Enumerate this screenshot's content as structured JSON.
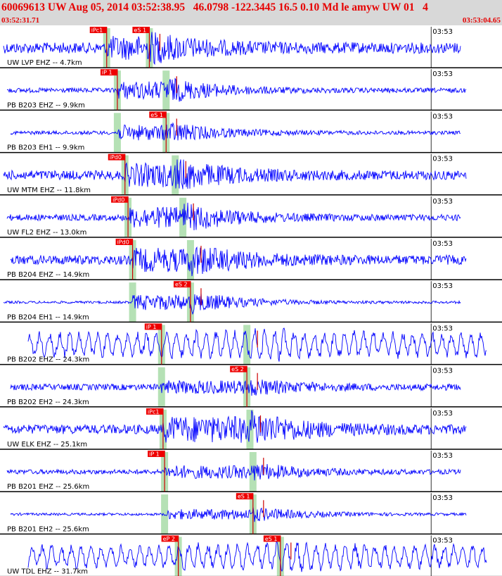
{
  "header": {
    "title": "60069613 UW Aug 05, 2014 03:52:38.95   46.0798 -122.3445 16.5 0.10 Md le amyw UW 01   4",
    "time_start": "03:52:31.71",
    "time_end": "03:53:04.65"
  },
  "colors": {
    "trace": "#0000ff",
    "pick_bg": "#ee0000",
    "pick_line": "#cc0000",
    "theory_band": "#a8dca8",
    "separator": "#000000",
    "header_bg": "#d8d8d8",
    "title_text": "#e60000"
  },
  "chart_data": {
    "type": "line",
    "x_range_seconds": [
      0,
      32.94
    ],
    "minute_tick_label": "03:53",
    "minute_tick_time_s": 28.29,
    "traces": [
      {
        "label": "UW LVP EHZ -- 4.7km",
        "p_pick": "iPc1",
        "s_pick": "eS 1",
        "p_time": 7.0,
        "s_time": 9.8,
        "amp_pre": 0.35,
        "amp_post": 0.9,
        "lowfreq": false
      },
      {
        "label": "PB B203 EHZ -- 9.9km",
        "p_pick": "iP 1",
        "s_pick": "",
        "p_time": 7.7,
        "s_time": 10.9,
        "amp_pre": 0.15,
        "amp_post": 0.7,
        "lowfreq": false
      },
      {
        "label": "PB B203 EH1 -- 9.9km",
        "p_pick": "",
        "s_pick": "eS 1",
        "p_time": 7.7,
        "s_time": 10.9,
        "amp_pre": 0.12,
        "amp_post": 0.6,
        "lowfreq": false
      },
      {
        "label": "UW MTM EHZ -- 11.8km",
        "p_pick": "iPd0",
        "s_pick": "",
        "p_time": 8.2,
        "s_time": 11.5,
        "amp_pre": 0.3,
        "amp_post": 0.9,
        "lowfreq": false
      },
      {
        "label": "UW FL2 EHZ -- 13.0km",
        "p_pick": "iPd0",
        "s_pick": "",
        "p_time": 8.4,
        "s_time": 12.0,
        "amp_pre": 0.2,
        "amp_post": 0.8,
        "lowfreq": false
      },
      {
        "label": "PB B204 EHZ -- 14.9km",
        "p_pick": "iPd0",
        "s_pick": "",
        "p_time": 8.7,
        "s_time": 12.5,
        "amp_pre": 0.3,
        "amp_post": 0.9,
        "lowfreq": false
      },
      {
        "label": "PB B204 EH1 -- 14.9km",
        "p_pick": "",
        "s_pick": "eS 2",
        "p_time": 8.7,
        "s_time": 12.5,
        "amp_pre": 0.08,
        "amp_post": 0.6,
        "lowfreq": false
      },
      {
        "label": "PB B202 EHZ -- 24.3km",
        "p_pick": "iP 1",
        "s_pick": "",
        "p_time": 10.6,
        "s_time": 16.2,
        "amp_pre": 0.9,
        "amp_post": 1.0,
        "lowfreq": true
      },
      {
        "label": "PB B202 EH2 -- 24.3km",
        "p_pick": "",
        "s_pick": "eS 2",
        "p_time": 10.6,
        "s_time": 16.2,
        "amp_pre": 0.2,
        "amp_post": 0.5,
        "lowfreq": false
      },
      {
        "label": "UW ELK EHZ -- 25.1km",
        "p_pick": "iPc1",
        "s_pick": "",
        "p_time": 10.7,
        "s_time": 16.4,
        "amp_pre": 0.3,
        "amp_post": 1.0,
        "lowfreq": false
      },
      {
        "label": "PB B201 EHZ -- 25.6km",
        "p_pick": "iP 1",
        "s_pick": "",
        "p_time": 10.8,
        "s_time": 16.6,
        "amp_pre": 0.15,
        "amp_post": 0.5,
        "lowfreq": false
      },
      {
        "label": "PB B201 EH2 -- 25.6km",
        "p_pick": "",
        "s_pick": "eS 1",
        "p_time": 10.8,
        "s_time": 16.6,
        "amp_pre": 0.08,
        "amp_post": 0.4,
        "lowfreq": false
      },
      {
        "label": "UW TDL EHZ -- 31.7km",
        "p_pick": "eP 2",
        "s_pick": "eS 1",
        "p_time": 11.7,
        "s_time": 18.4,
        "amp_pre": 0.8,
        "amp_post": 1.0,
        "lowfreq": true
      }
    ]
  }
}
